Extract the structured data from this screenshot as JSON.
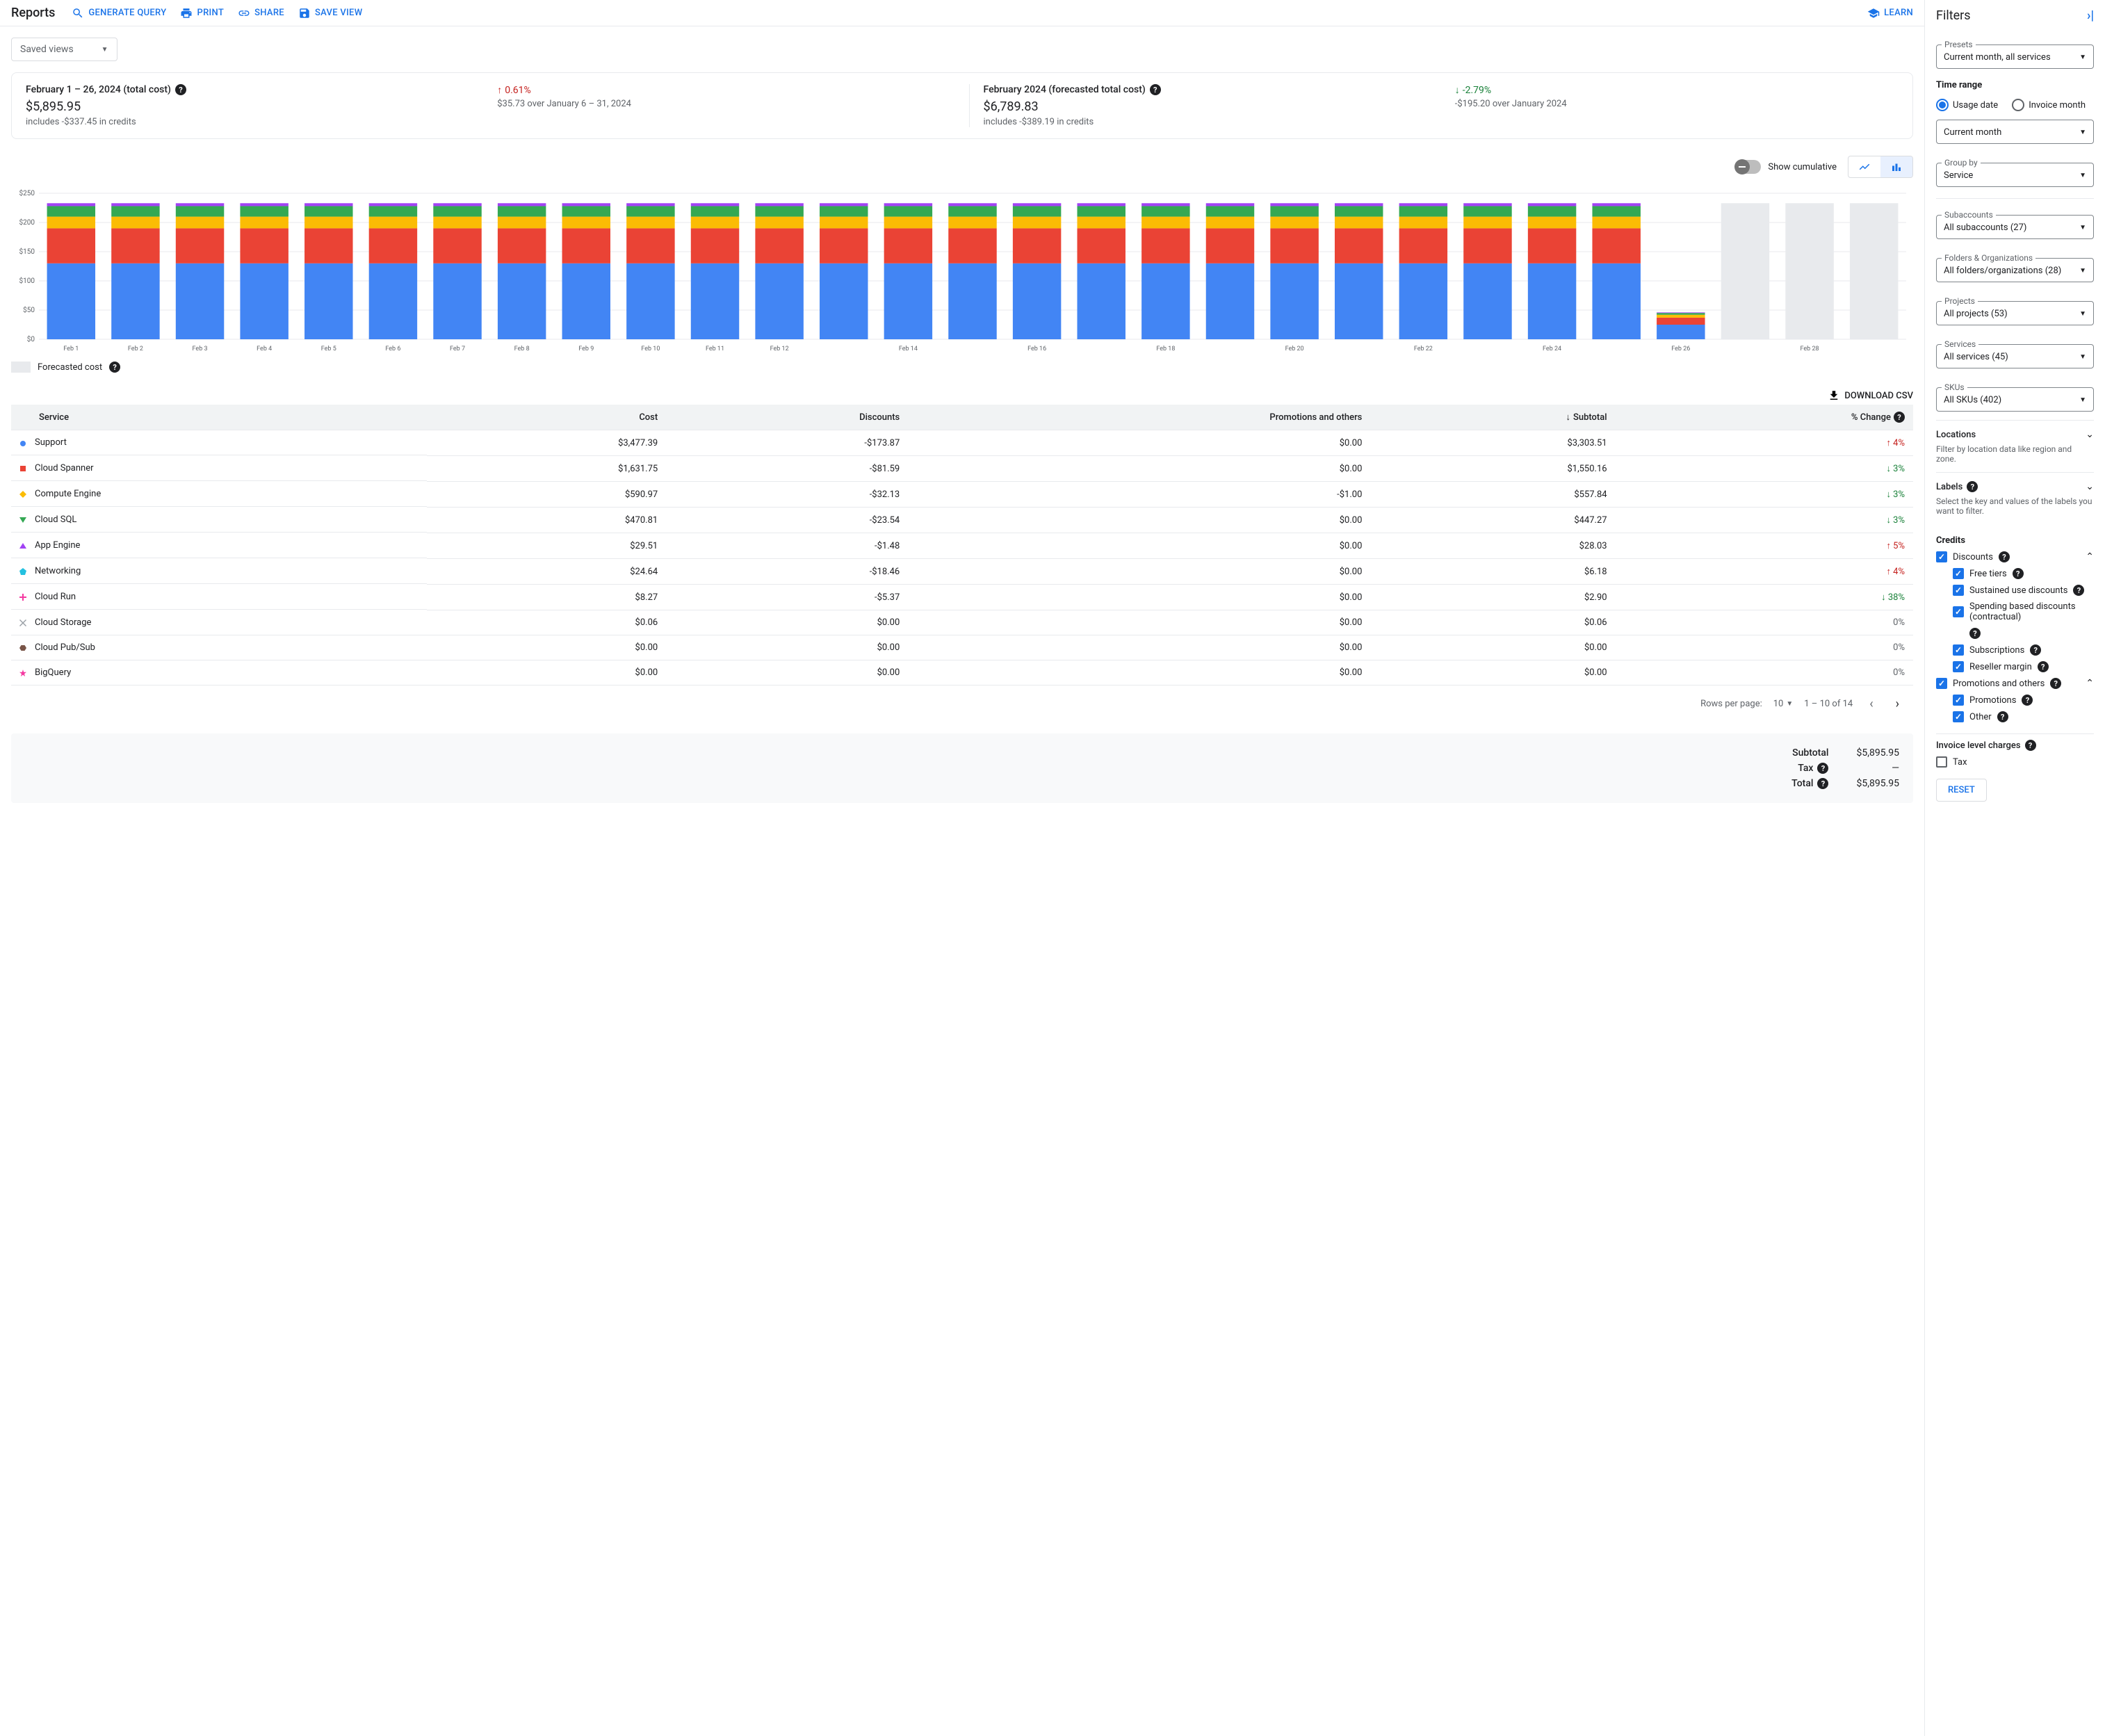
{
  "header": {
    "title": "Reports",
    "actions": {
      "generate_query": "GENERATE QUERY",
      "print": "PRINT",
      "share": "SHARE",
      "save_view": "SAVE VIEW",
      "learn": "LEARN"
    },
    "saved_views": "Saved views"
  },
  "summary": {
    "actual": {
      "title": "February 1 – 26, 2024 (total cost)",
      "amount": "$5,895.95",
      "credits": "includes -$337.45 in credits",
      "change_pct": "0.61%",
      "change_dir": "up",
      "change_detail": "$35.73 over January 6 – 31, 2024"
    },
    "forecast": {
      "title": "February 2024 (forecasted total cost)",
      "amount": "$6,789.83",
      "credits": "includes -$389.19 in credits",
      "change_pct": "-2.79%",
      "change_dir": "down",
      "change_detail": "-$195.20 over January 2024"
    }
  },
  "chart": {
    "cumulative_label": "Show cumulative",
    "legend_forecast": "Forecasted cost",
    "ymax": 250,
    "ytick_step": 50,
    "ylabels": [
      "$0",
      "$50",
      "$100",
      "$150",
      "$200",
      "$250"
    ],
    "xlabels": [
      "Feb 1",
      "Feb 2",
      "Feb 3",
      "Feb 4",
      "Feb 5",
      "Feb 6",
      "Feb 7",
      "Feb 8",
      "Feb 9",
      "Feb 10",
      "Feb 11",
      "Feb 12",
      "",
      "Feb 14",
      "",
      "Feb 16",
      "",
      "Feb 18",
      "",
      "Feb 20",
      "",
      "Feb 22",
      "",
      "Feb 24",
      "",
      "Feb 26",
      "",
      "Feb 28",
      ""
    ],
    "series_colors": [
      "#4285f4",
      "#ea4335",
      "#fbbc04",
      "#34a853",
      "#a142f4",
      "#24c1e0",
      "#f439a0",
      "#9aa0a6",
      "#795548",
      "#607d8b"
    ],
    "forecast_color": "#e8eaed",
    "grid_color": "#e8eaed",
    "background": "#ffffff",
    "days": [
      {
        "stacks": [
          130,
          60,
          20,
          18,
          5
        ],
        "forecast": false
      },
      {
        "stacks": [
          130,
          60,
          20,
          18,
          5
        ],
        "forecast": false
      },
      {
        "stacks": [
          130,
          60,
          20,
          18,
          5
        ],
        "forecast": false
      },
      {
        "stacks": [
          130,
          60,
          20,
          18,
          5
        ],
        "forecast": false
      },
      {
        "stacks": [
          130,
          60,
          20,
          18,
          5
        ],
        "forecast": false
      },
      {
        "stacks": [
          130,
          60,
          20,
          18,
          5
        ],
        "forecast": false
      },
      {
        "stacks": [
          130,
          60,
          20,
          18,
          5
        ],
        "forecast": false
      },
      {
        "stacks": [
          130,
          60,
          20,
          18,
          5
        ],
        "forecast": false
      },
      {
        "stacks": [
          130,
          60,
          20,
          18,
          5
        ],
        "forecast": false
      },
      {
        "stacks": [
          130,
          60,
          20,
          18,
          5
        ],
        "forecast": false
      },
      {
        "stacks": [
          130,
          60,
          20,
          18,
          5
        ],
        "forecast": false
      },
      {
        "stacks": [
          130,
          60,
          20,
          18,
          5
        ],
        "forecast": false
      },
      {
        "stacks": [
          130,
          60,
          20,
          18,
          5
        ],
        "forecast": false
      },
      {
        "stacks": [
          130,
          60,
          20,
          18,
          5
        ],
        "forecast": false
      },
      {
        "stacks": [
          130,
          60,
          20,
          18,
          5
        ],
        "forecast": false
      },
      {
        "stacks": [
          130,
          60,
          20,
          18,
          5
        ],
        "forecast": false
      },
      {
        "stacks": [
          130,
          60,
          20,
          18,
          5
        ],
        "forecast": false
      },
      {
        "stacks": [
          130,
          60,
          20,
          18,
          5
        ],
        "forecast": false
      },
      {
        "stacks": [
          130,
          60,
          20,
          18,
          5
        ],
        "forecast": false
      },
      {
        "stacks": [
          130,
          60,
          20,
          18,
          5
        ],
        "forecast": false
      },
      {
        "stacks": [
          130,
          60,
          20,
          18,
          5
        ],
        "forecast": false
      },
      {
        "stacks": [
          130,
          60,
          20,
          18,
          5
        ],
        "forecast": false
      },
      {
        "stacks": [
          130,
          60,
          20,
          18,
          5
        ],
        "forecast": false
      },
      {
        "stacks": [
          130,
          60,
          20,
          18,
          5
        ],
        "forecast": false
      },
      {
        "stacks": [
          130,
          60,
          20,
          18,
          5
        ],
        "forecast": false
      },
      {
        "stacks": [
          25,
          12,
          5,
          3,
          1
        ],
        "forecast": false
      },
      {
        "stacks": [
          233
        ],
        "forecast": true
      },
      {
        "stacks": [
          233
        ],
        "forecast": true
      },
      {
        "stacks": [
          233
        ],
        "forecast": true
      }
    ]
  },
  "download_csv": "DOWNLOAD CSV",
  "table": {
    "columns": [
      "Service",
      "Cost",
      "Discounts",
      "Promotions and others",
      "Subtotal",
      "% Change"
    ],
    "rows": [
      {
        "marker": "circle",
        "color": "#4285f4",
        "service": "Support",
        "cost": "$3,477.39",
        "discounts": "-$173.87",
        "promo": "$0.00",
        "subtotal": "$3,303.51",
        "change": "4%",
        "dir": "up"
      },
      {
        "marker": "square",
        "color": "#ea4335",
        "service": "Cloud Spanner",
        "cost": "$1,631.75",
        "discounts": "-$81.59",
        "promo": "$0.00",
        "subtotal": "$1,550.16",
        "change": "3%",
        "dir": "down"
      },
      {
        "marker": "diamond",
        "color": "#fbbc04",
        "service": "Compute Engine",
        "cost": "$590.97",
        "discounts": "-$32.13",
        "promo": "-$1.00",
        "subtotal": "$557.84",
        "change": "3%",
        "dir": "down"
      },
      {
        "marker": "triangle-down",
        "color": "#34a853",
        "service": "Cloud SQL",
        "cost": "$470.81",
        "discounts": "-$23.54",
        "promo": "$0.00",
        "subtotal": "$447.27",
        "change": "3%",
        "dir": "down"
      },
      {
        "marker": "triangle-up",
        "color": "#a142f4",
        "service": "App Engine",
        "cost": "$29.51",
        "discounts": "-$1.48",
        "promo": "$0.00",
        "subtotal": "$28.03",
        "change": "5%",
        "dir": "up"
      },
      {
        "marker": "pentagon",
        "color": "#24c1e0",
        "service": "Networking",
        "cost": "$24.64",
        "discounts": "-$18.46",
        "promo": "$0.00",
        "subtotal": "$6.18",
        "change": "4%",
        "dir": "up"
      },
      {
        "marker": "plus",
        "color": "#f439a0",
        "service": "Cloud Run",
        "cost": "$8.27",
        "discounts": "-$5.37",
        "promo": "$0.00",
        "subtotal": "$2.90",
        "change": "38%",
        "dir": "down"
      },
      {
        "marker": "cross",
        "color": "#9aa0a6",
        "service": "Cloud Storage",
        "cost": "$0.06",
        "discounts": "$0.00",
        "promo": "$0.00",
        "subtotal": "$0.06",
        "change": "0%",
        "dir": "none"
      },
      {
        "marker": "hex",
        "color": "#795548",
        "service": "Cloud Pub/Sub",
        "cost": "$0.00",
        "discounts": "$0.00",
        "promo": "$0.00",
        "subtotal": "$0.00",
        "change": "0%",
        "dir": "none"
      },
      {
        "marker": "star",
        "color": "#f439a0",
        "service": "BigQuery",
        "cost": "$0.00",
        "discounts": "$0.00",
        "promo": "$0.00",
        "subtotal": "$0.00",
        "change": "0%",
        "dir": "none"
      }
    ]
  },
  "pagination": {
    "rows_per_page_label": "Rows per page:",
    "rows_per_page": "10",
    "range": "1 – 10 of 14"
  },
  "totals": {
    "subtotal_label": "Subtotal",
    "subtotal": "$5,895.95",
    "tax_label": "Tax",
    "tax": "—",
    "total_label": "Total",
    "total": "$5,895.95"
  },
  "filters": {
    "title": "Filters",
    "presets": {
      "label": "Presets",
      "value": "Current month, all services"
    },
    "time_range_heading": "Time range",
    "usage_date": "Usage date",
    "invoice_month": "Invoice month",
    "time_range_value": "Current month",
    "group_by": {
      "label": "Group by",
      "value": "Service"
    },
    "subaccounts": {
      "label": "Subaccounts",
      "value": "All subaccounts (27)"
    },
    "folders": {
      "label": "Folders & Organizations",
      "value": "All folders/organizations (28)"
    },
    "projects": {
      "label": "Projects",
      "value": "All projects (53)"
    },
    "services": {
      "label": "Services",
      "value": "All services (45)"
    },
    "skus": {
      "label": "SKUs",
      "value": "All SKUs (402)"
    },
    "locations": {
      "label": "Locations",
      "sub": "Filter by location data like region and zone."
    },
    "labels": {
      "label": "Labels",
      "sub": "Select the key and values of the labels you want to filter."
    },
    "credits_heading": "Credits",
    "discounts": "Discounts",
    "free_tiers": "Free tiers",
    "sustained": "Sustained use discounts",
    "spending": "Spending based discounts (contractual)",
    "subscriptions": "Subscriptions",
    "reseller": "Reseller margin",
    "promotions_others": "Promotions and others",
    "promotions": "Promotions",
    "other": "Other",
    "invoice_level": "Invoice level charges",
    "tax": "Tax",
    "reset": "RESET"
  }
}
